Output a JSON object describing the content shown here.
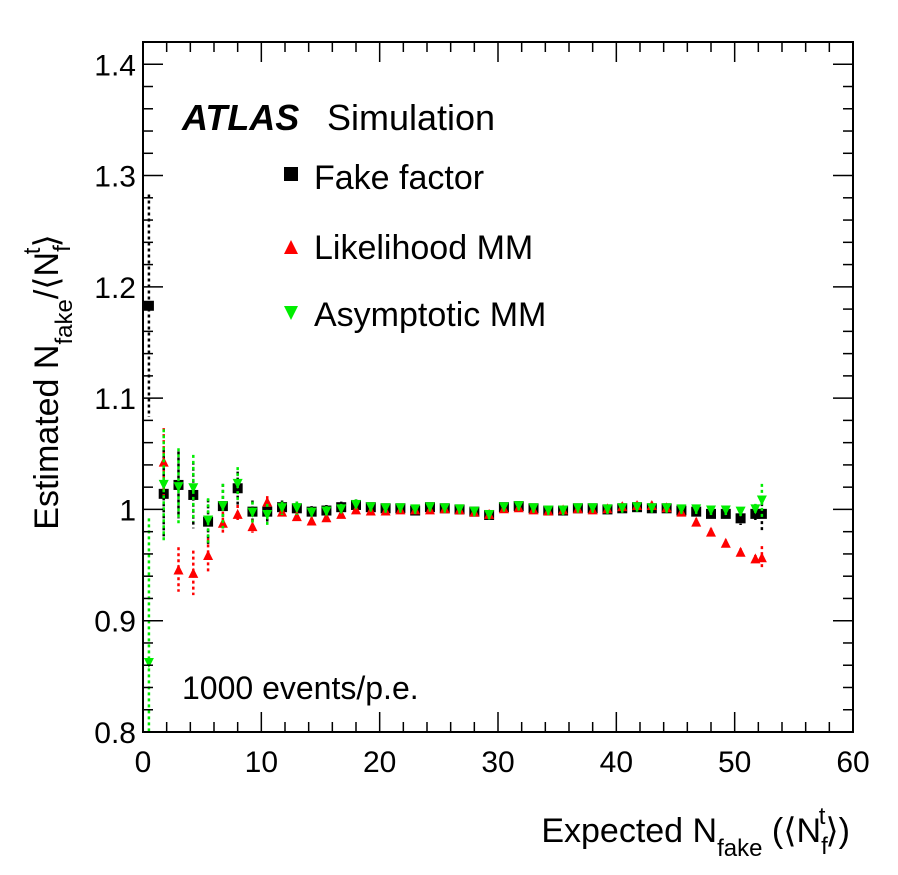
{
  "chart_data": {
    "type": "scatter",
    "title": "",
    "experiment_label": "ATLAS",
    "experiment_sublabel": "Simulation",
    "annotation": "1000 events/p.e.",
    "xlabel": {
      "main": "Expected N",
      "sub": "fake",
      "paren_open": " (⟨N",
      "inner_sub": "f",
      "inner_sup": "t",
      "paren_close": "⟩)"
    },
    "ylabel": {
      "main": "Estimated N",
      "sub": "fake",
      "slash": "/⟨N",
      "inner_sub": "f",
      "inner_sup": "t",
      "close": "⟩"
    },
    "xlim": [
      0,
      60
    ],
    "ylim": [
      0.8,
      1.42
    ],
    "x_ticks": [
      "0",
      "10",
      "20",
      "30",
      "40",
      "50",
      "60"
    ],
    "y_ticks": [
      "0.8",
      "0.9",
      "1",
      "1.1",
      "1.2",
      "1.3",
      "1.4"
    ],
    "legend_position": "top-left",
    "series": [
      {
        "name": "Fake factor",
        "marker": "square",
        "color": "#000000",
        "x": [
          0.5,
          1.75,
          3.0,
          4.25,
          5.5,
          6.75,
          8.0,
          9.25,
          10.5,
          11.75,
          13.0,
          14.25,
          15.5,
          16.75,
          18.0,
          19.25,
          20.5,
          21.75,
          23.0,
          24.25,
          25.5,
          26.75,
          28.0,
          29.25,
          30.5,
          31.75,
          33.0,
          34.25,
          35.5,
          36.75,
          38.0,
          39.25,
          40.5,
          41.75,
          43.0,
          44.25,
          45.5,
          46.75,
          48.0,
          49.25,
          50.5,
          51.75,
          52.3
        ],
        "y": [
          1.183,
          1.014,
          1.022,
          1.013,
          0.989,
          1.003,
          1.019,
          0.998,
          0.998,
          1.002,
          1.001,
          0.998,
          0.999,
          1.002,
          1.004,
          1.002,
          1.001,
          1.001,
          0.999,
          1.002,
          1.001,
          1.0,
          0.998,
          0.995,
          1.002,
          1.003,
          1.001,
          0.999,
          0.999,
          1.001,
          1.001,
          1.0,
          1.001,
          1.002,
          1.001,
          1.001,
          0.999,
          0.998,
          0.996,
          0.996,
          0.992,
          0.996,
          0.996
        ],
        "err": [
          0.1,
          0.04,
          0.03,
          0.03,
          0.02,
          0.02,
          0.015,
          0.01,
          0.01,
          0.006,
          0.006,
          0.005,
          0.005,
          0.005,
          0.005,
          0.004,
          0.004,
          0.004,
          0.004,
          0.004,
          0.004,
          0.004,
          0.004,
          0.004,
          0.004,
          0.004,
          0.004,
          0.004,
          0.004,
          0.004,
          0.004,
          0.004,
          0.004,
          0.004,
          0.004,
          0.004,
          0.004,
          0.004,
          0.004,
          0.004,
          0.006,
          0.008,
          0.015
        ]
      },
      {
        "name": "Likelihood MM",
        "marker": "triangle-up",
        "color": "#ff0000",
        "x": [
          1.75,
          3.0,
          4.25,
          5.5,
          6.75,
          8.0,
          9.25,
          10.5,
          11.75,
          13.0,
          14.25,
          15.5,
          16.75,
          18.0,
          19.25,
          20.5,
          21.75,
          23.0,
          24.25,
          25.5,
          26.75,
          28.0,
          29.25,
          30.5,
          31.75,
          33.0,
          34.25,
          35.5,
          36.75,
          38.0,
          39.25,
          40.5,
          41.75,
          43.0,
          44.25,
          45.5,
          46.75,
          48.0,
          49.25,
          50.5,
          51.75,
          52.3
        ],
        "y": [
          1.043,
          0.946,
          0.943,
          0.959,
          0.988,
          0.996,
          0.985,
          1.007,
          0.998,
          0.994,
          0.99,
          0.993,
          0.996,
          1.0,
          0.999,
          0.999,
          1.0,
          1.0,
          1.0,
          1.001,
          1.0,
          0.998,
          0.996,
          1.001,
          1.002,
          1.0,
          0.999,
          1.0,
          1.001,
          1.0,
          1.001,
          1.003,
          1.004,
          1.004,
          1.002,
          0.998,
          0.989,
          0.98,
          0.97,
          0.962,
          0.956,
          0.957
        ],
        "err": [
          0.03,
          0.02,
          0.02,
          0.015,
          0.01,
          0.008,
          0.006,
          0.005,
          0.004,
          0.004,
          0.003,
          0.003,
          0.003,
          0.003,
          0.003,
          0.003,
          0.003,
          0.003,
          0.003,
          0.003,
          0.003,
          0.003,
          0.003,
          0.003,
          0.003,
          0.003,
          0.003,
          0.003,
          0.003,
          0.003,
          0.003,
          0.003,
          0.003,
          0.003,
          0.003,
          0.003,
          0.003,
          0.003,
          0.003,
          0.003,
          0.003,
          0.01
        ]
      },
      {
        "name": "Asymptotic MM",
        "marker": "triangle-down",
        "color": "#00ee00",
        "x": [
          0.5,
          1.75,
          3.0,
          4.25,
          5.5,
          6.75,
          8.0,
          9.25,
          10.5,
          11.75,
          13.0,
          14.25,
          15.5,
          16.75,
          18.0,
          19.25,
          20.5,
          21.75,
          23.0,
          24.25,
          25.5,
          26.75,
          28.0,
          29.25,
          30.5,
          31.75,
          33.0,
          34.25,
          35.5,
          36.75,
          38.0,
          39.25,
          40.5,
          41.75,
          43.0,
          44.25,
          45.5,
          46.75,
          48.0,
          49.25,
          50.5,
          51.75,
          52.3
        ],
        "y": [
          0.862,
          1.022,
          1.02,
          1.019,
          0.99,
          1.003,
          1.023,
          0.997,
          0.995,
          1.001,
          1.001,
          0.997,
          0.998,
          1.0,
          1.004,
          1.002,
          1.001,
          1.001,
          1.0,
          1.002,
          1.001,
          1.0,
          0.998,
          0.995,
          1.002,
          1.003,
          1.001,
          0.999,
          0.999,
          1.001,
          1.001,
          1.0,
          1.001,
          1.002,
          1.001,
          1.001,
          1.0,
          1.0,
          0.999,
          0.999,
          0.998,
          1.0,
          1.008
        ],
        "err": [
          0.13,
          0.05,
          0.035,
          0.03,
          0.02,
          0.02,
          0.015,
          0.01,
          0.01,
          0.006,
          0.006,
          0.005,
          0.005,
          0.005,
          0.005,
          0.004,
          0.004,
          0.004,
          0.004,
          0.004,
          0.004,
          0.004,
          0.004,
          0.004,
          0.004,
          0.004,
          0.004,
          0.004,
          0.004,
          0.004,
          0.004,
          0.004,
          0.004,
          0.004,
          0.004,
          0.004,
          0.004,
          0.004,
          0.004,
          0.004,
          0.004,
          0.005,
          0.015
        ]
      }
    ]
  }
}
